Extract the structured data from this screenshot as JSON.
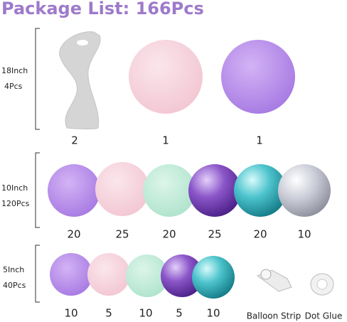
{
  "title": "Package List: 166Pcs",
  "rows": [
    {
      "size": "18Inch",
      "count": "4Pcs",
      "items": [
        2,
        1,
        1
      ]
    },
    {
      "size": "10Inch",
      "count": "120Pcs",
      "items": [
        20,
        25,
        20,
        25,
        20,
        10
      ]
    },
    {
      "size": "5Inch",
      "count": "40Pcs",
      "items": [
        10,
        5,
        10,
        5,
        10
      ]
    }
  ],
  "accessories": [
    "Balloon Strip",
    "Dot Glue"
  ]
}
